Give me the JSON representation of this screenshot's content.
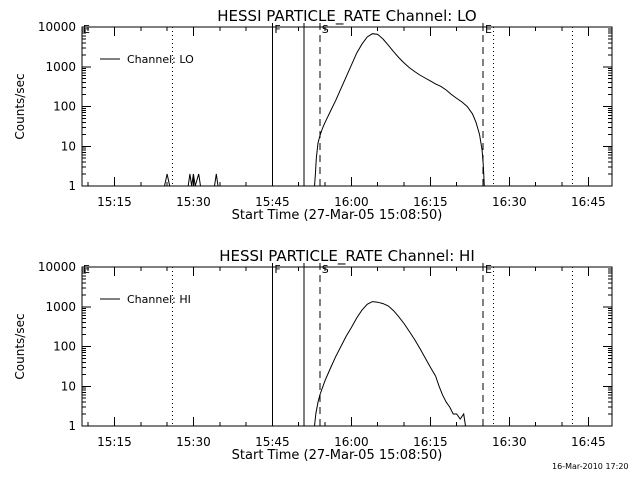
{
  "footer_timestamp": "16-Mar-2010 17:20",
  "chart_data": [
    {
      "type": "line",
      "title": "HESSI PARTICLE_RATE Channel: LO",
      "xlabel": "Start Time (27-Mar-05 15:08:50)",
      "ylabel": "Counts/sec",
      "yscale": "log",
      "xlim": [
        "15:08:50",
        "16:49:30"
      ],
      "ylim": [
        1,
        10000
      ],
      "xtick_labels": [
        "15:15",
        "15:30",
        "15:45",
        "16:00",
        "16:15",
        "16:30",
        "16:45"
      ],
      "ytick_labels": [
        "1",
        "10",
        "100",
        "1000",
        "10000"
      ],
      "legend": {
        "position": "top-left",
        "entries": [
          "Channel: LO"
        ]
      },
      "markers": [
        {
          "label": "F",
          "time": "15:45",
          "style": "solid"
        },
        {
          "label": "",
          "time": "15:51",
          "style": "solid"
        },
        {
          "label": "S",
          "time": "15:54",
          "style": "dashed"
        },
        {
          "label": "E",
          "time": "16:25",
          "style": "dashed"
        }
      ],
      "dotted_lines": [
        "15:26",
        "16:27",
        "16:42"
      ],
      "series": [
        {
          "name": "Channel: LO",
          "points": [
            [
              "15:24:30",
              1
            ],
            [
              "15:25:00",
              2
            ],
            [
              "15:25:30",
              1
            ],
            [
              "15:29:00",
              1
            ],
            [
              "15:29:20",
              2
            ],
            [
              "15:29:40",
              1
            ],
            [
              "15:30:00",
              2
            ],
            [
              "15:30:20",
              1
            ],
            [
              "15:31:00",
              2
            ],
            [
              "15:31:20",
              1
            ],
            [
              "15:32:00",
              1
            ],
            [
              "15:34:00",
              1
            ],
            [
              "15:34:20",
              2
            ],
            [
              "15:34:40",
              1
            ],
            [
              "15:53:00",
              1
            ],
            [
              "15:53:10",
              2
            ],
            [
              "15:53:20",
              5
            ],
            [
              "15:53:40",
              12
            ],
            [
              "15:54:00",
              18
            ],
            [
              "15:54:30",
              28
            ],
            [
              "15:55:00",
              40
            ],
            [
              "15:56:00",
              75
            ],
            [
              "15:57:00",
              140
            ],
            [
              "15:58:00",
              280
            ],
            [
              "15:59:00",
              550
            ],
            [
              "16:00:00",
              1100
            ],
            [
              "16:01:00",
              2200
            ],
            [
              "16:02:00",
              3700
            ],
            [
              "16:03:00",
              5600
            ],
            [
              "16:04:00",
              6800
            ],
            [
              "16:05:00",
              6500
            ],
            [
              "16:06:00",
              5000
            ],
            [
              "16:07:00",
              3500
            ],
            [
              "16:08:00",
              2400
            ],
            [
              "16:09:00",
              1700
            ],
            [
              "16:10:00",
              1250
            ],
            [
              "16:11:00",
              950
            ],
            [
              "16:12:00",
              760
            ],
            [
              "16:13:00",
              620
            ],
            [
              "16:14:00",
              520
            ],
            [
              "16:15:00",
              440
            ],
            [
              "16:16:00",
              370
            ],
            [
              "16:17:00",
              320
            ],
            [
              "16:18:00",
              260
            ],
            [
              "16:19:00",
              200
            ],
            [
              "16:20:00",
              160
            ],
            [
              "16:21:00",
              130
            ],
            [
              "16:22:00",
              100
            ],
            [
              "16:23:00",
              65
            ],
            [
              "16:23:40",
              40
            ],
            [
              "16:24:20",
              20
            ],
            [
              "16:24:50",
              8
            ],
            [
              "16:25:05",
              3
            ],
            [
              "16:25:15",
              1
            ]
          ]
        }
      ]
    },
    {
      "type": "line",
      "title": "HESSI PARTICLE_RATE Channel: HI",
      "xlabel": "Start Time (27-Mar-05 15:08:50)",
      "ylabel": "Counts/sec",
      "yscale": "log",
      "xlim": [
        "15:08:50",
        "16:49:30"
      ],
      "ylim": [
        1,
        10000
      ],
      "xtick_labels": [
        "15:15",
        "15:30",
        "15:45",
        "16:00",
        "16:15",
        "16:30",
        "16:45"
      ],
      "ytick_labels": [
        "1",
        "10",
        "100",
        "1000",
        "10000"
      ],
      "legend": {
        "position": "top-left",
        "entries": [
          "Channel: HI"
        ]
      },
      "markers": [
        {
          "label": "F",
          "time": "15:45",
          "style": "solid"
        },
        {
          "label": "",
          "time": "15:51",
          "style": "solid"
        },
        {
          "label": "S",
          "time": "15:54",
          "style": "dashed"
        },
        {
          "label": "E",
          "time": "16:25",
          "style": "dashed"
        }
      ],
      "dotted_lines": [
        "15:26",
        "16:27",
        "16:42"
      ],
      "series": [
        {
          "name": "Channel: HI",
          "points": [
            [
              "15:53:00",
              1
            ],
            [
              "15:53:15",
              2
            ],
            [
              "15:53:40",
              4
            ],
            [
              "15:54:00",
              6
            ],
            [
              "15:55:00",
              14
            ],
            [
              "15:56:00",
              28
            ],
            [
              "15:57:00",
              55
            ],
            [
              "15:58:00",
              100
            ],
            [
              "15:59:00",
              180
            ],
            [
              "16:00:00",
              300
            ],
            [
              "16:01:00",
              520
            ],
            [
              "16:02:00",
              820
            ],
            [
              "16:03:00",
              1150
            ],
            [
              "16:04:00",
              1350
            ],
            [
              "16:05:00",
              1300
            ],
            [
              "16:06:00",
              1200
            ],
            [
              "16:07:00",
              1050
            ],
            [
              "16:08:00",
              800
            ],
            [
              "16:09:00",
              560
            ],
            [
              "16:10:00",
              380
            ],
            [
              "16:11:00",
              240
            ],
            [
              "16:12:00",
              150
            ],
            [
              "16:13:00",
              90
            ],
            [
              "16:14:00",
              52
            ],
            [
              "16:15:00",
              30
            ],
            [
              "16:16:00",
              18
            ],
            [
              "16:16:40",
              10
            ],
            [
              "16:17:20",
              6
            ],
            [
              "16:18:00",
              4
            ],
            [
              "16:18:40",
              3
            ],
            [
              "16:19:20",
              2
            ],
            [
              "16:20:00",
              2
            ],
            [
              "16:20:40",
              1.5
            ],
            [
              "16:21:20",
              2
            ],
            [
              "16:21:40",
              1
            ]
          ]
        }
      ]
    }
  ]
}
